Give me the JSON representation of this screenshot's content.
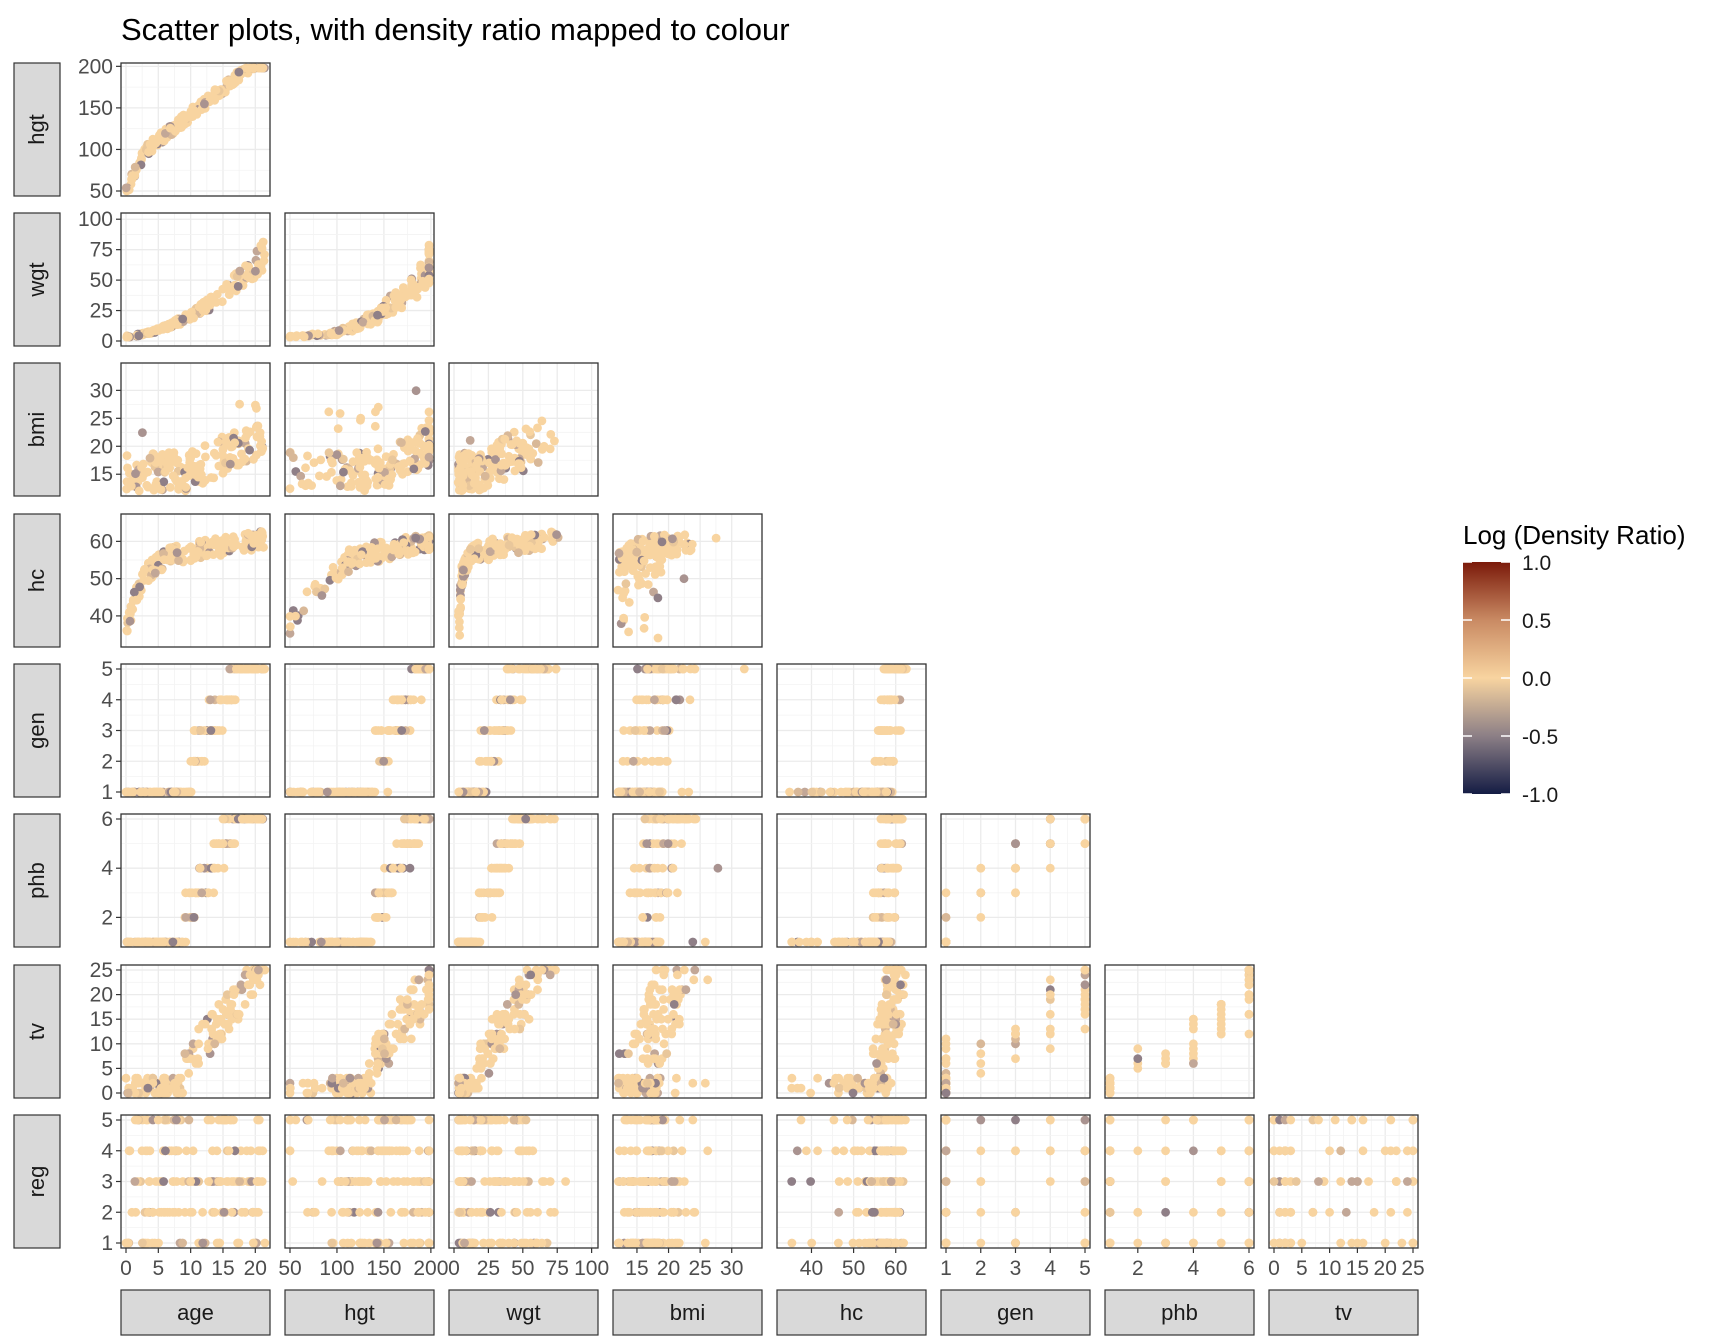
{
  "chart_data": {
    "type": "scatter",
    "title": "Scatter plots, with density ratio mapped to colour",
    "layout": "lower-triangular scatterplot matrix",
    "x_variables": [
      "age",
      "hgt",
      "wgt",
      "bmi",
      "hc",
      "gen",
      "phb",
      "tv"
    ],
    "y_variables": [
      "hgt",
      "wgt",
      "bmi",
      "hc",
      "gen",
      "phb",
      "tv",
      "reg"
    ],
    "variables": {
      "age": {
        "range": [
          0,
          21.5
        ],
        "ticks": [
          0,
          5,
          10,
          15,
          20
        ],
        "tick_labels": [
          "0",
          "5",
          "10",
          "15",
          "20"
        ]
      },
      "hgt": {
        "range": [
          50,
          198
        ],
        "ticks": [
          50,
          100,
          150,
          200
        ],
        "tick_labels": [
          "50",
          "100",
          "150",
          "200"
        ]
      },
      "wgt": {
        "range": [
          0,
          101
        ],
        "ticks": [
          0,
          25,
          50,
          75,
          100
        ],
        "tick_labels": [
          "0",
          "25",
          "50",
          "75",
          "100"
        ]
      },
      "bmi": {
        "range": [
          12,
          34
        ],
        "ticks": [
          15,
          20,
          25,
          30
        ],
        "tick_labels": [
          "15",
          "20",
          "25",
          "30"
        ]
      },
      "hc": {
        "range": [
          33,
          66
        ],
        "ticks": [
          40,
          50,
          60
        ],
        "tick_labels": [
          "40",
          "50",
          "60"
        ]
      },
      "gen": {
        "range": [
          1,
          5
        ],
        "ticks": [
          1,
          2,
          3,
          4,
          5
        ],
        "tick_labels": [
          "1",
          "2",
          "3",
          "4",
          "5"
        ]
      },
      "phb": {
        "range": [
          1,
          6
        ],
        "ticks": [
          2,
          4,
          6
        ],
        "tick_labels": [
          "2",
          "4",
          "6"
        ]
      },
      "tv": {
        "range": [
          0,
          25
        ],
        "ticks": [
          0,
          5,
          10,
          15,
          20,
          25
        ],
        "tick_labels": [
          "0",
          "5",
          "10",
          "15",
          "20",
          "25"
        ]
      },
      "reg": {
        "range": [
          1,
          5
        ],
        "ticks": [
          1,
          2,
          3,
          4,
          5
        ],
        "tick_labels": [
          "1",
          "2",
          "3",
          "4",
          "5"
        ]
      }
    },
    "grid": true,
    "point_color_default": "#f8d4a0",
    "point_colors": [
      "#f8d4a0",
      "#e9c79b",
      "#d8b898",
      "#c2a797",
      "#a99390",
      "#8f7f87"
    ],
    "colorbar": {
      "title": "Log (Density Ratio)",
      "range": [
        -1.0,
        1.0
      ],
      "ticks": [
        1.0,
        0.5,
        0.0,
        -0.5,
        -1.0
      ],
      "tick_labels": [
        "1.0",
        "0.5",
        "0.0",
        "-0.5",
        "-1.0"
      ],
      "stops": [
        {
          "value": 1.0,
          "color": "#7b1a0a"
        },
        {
          "value": 0.5,
          "color": "#c98a63"
        },
        {
          "value": 0.0,
          "color": "#f8d4a0"
        },
        {
          "value": -0.5,
          "color": "#8c7f86"
        },
        {
          "value": -1.0,
          "color": "#141c44"
        }
      ],
      "legend_placement": "right"
    }
  }
}
